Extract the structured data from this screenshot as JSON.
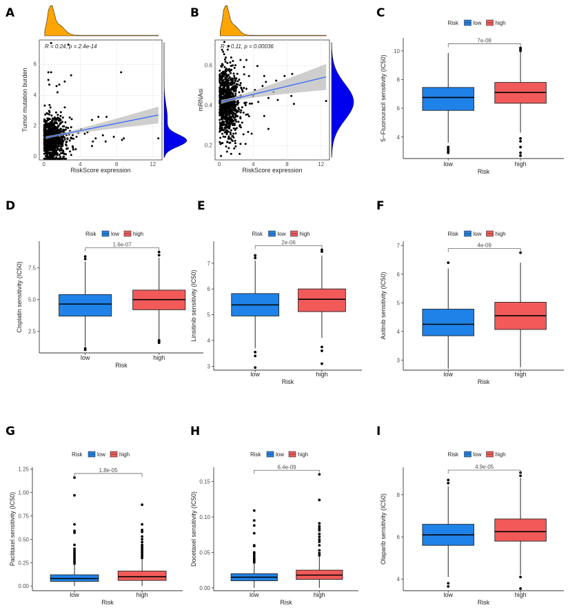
{
  "colors": {
    "low": "#1f82e8",
    "high": "#f25a5a",
    "top_density": "#ffa500",
    "right_density": "#0000ee",
    "fit_line": "#3366ff",
    "ci_band": "#bdbdbd"
  },
  "legend": {
    "title": "Risk",
    "low": "low",
    "high": "high"
  },
  "chart_data": [
    {
      "panel": "A",
      "type": "scatter",
      "xlabel": "RiskScore expression",
      "ylabel": "Tumor mutation burden",
      "xlim": [
        -0.5,
        13
      ],
      "ylim": [
        -0.2,
        7.6
      ],
      "xticks": [
        0,
        4,
        8,
        12
      ],
      "yticks": [
        0,
        2,
        4,
        6
      ],
      "annotation": "R = 0.24, p = 2.4e-14",
      "fit": {
        "x0": 0.2,
        "y0": 1.25,
        "x1": 12.6,
        "y1": 2.72,
        "ci_halfwidth_end": 0.55
      },
      "cluster": {
        "n": 900,
        "x_center": 0.9,
        "x_spread": 0.7,
        "y_center": 1.2,
        "y_spread": 0.7,
        "seed": 7
      },
      "points": [
        [
          0.8,
          7.4
        ],
        [
          2.7,
          7.3
        ],
        [
          0.5,
          5.5
        ],
        [
          0.8,
          5.5
        ],
        [
          3,
          5.3
        ],
        [
          8.5,
          5.5
        ],
        [
          0.5,
          5.0
        ],
        [
          2.3,
          4.9
        ],
        [
          0.6,
          4.7
        ],
        [
          1.7,
          4.7
        ],
        [
          1.4,
          4.6
        ],
        [
          1.5,
          4.2
        ],
        [
          5.3,
          2.4
        ],
        [
          6,
          2.6
        ],
        [
          6.9,
          2.6
        ],
        [
          5.3,
          0.7
        ],
        [
          5.4,
          1.0
        ],
        [
          5.7,
          1.2
        ],
        [
          6.5,
          1.4
        ],
        [
          6.8,
          1.0
        ],
        [
          7.7,
          1.3
        ],
        [
          8.6,
          1.1
        ],
        [
          8.8,
          1.2
        ],
        [
          12.6,
          1.2
        ],
        [
          3.2,
          0.6
        ],
        [
          3.6,
          1.3
        ],
        [
          4.1,
          1.8
        ],
        [
          4.5,
          1.5
        ],
        [
          4.8,
          1.6
        ],
        [
          2.2,
          0.2
        ]
      ]
    },
    {
      "panel": "B",
      "type": "scatter",
      "xlabel": "RiskScore expression",
      "ylabel": "mRNAsi",
      "xlim": [
        -0.5,
        13
      ],
      "ylim": [
        0.13,
        0.73
      ],
      "xticks": [
        0,
        4,
        8,
        12
      ],
      "yticks": [
        0.2,
        0.4,
        0.6
      ],
      "annotation": "R = 0.11, p = 0.00036",
      "fit": {
        "x0": 0.2,
        "y0": 0.42,
        "x1": 12.6,
        "y1": 0.545,
        "ci_halfwidth_end": 0.065
      },
      "cluster": {
        "n": 900,
        "x_center": 0.9,
        "x_spread": 0.7,
        "y_center": 0.42,
        "y_spread": 0.09,
        "seed": 11
      },
      "points": [
        [
          0.6,
          0.72
        ],
        [
          1.1,
          0.7
        ],
        [
          2.5,
          0.63
        ],
        [
          3.2,
          0.63
        ],
        [
          4.5,
          0.6
        ],
        [
          3.5,
          0.55
        ],
        [
          5.3,
          0.55
        ],
        [
          5.5,
          0.52
        ],
        [
          7.7,
          0.55
        ],
        [
          8.6,
          0.56
        ],
        [
          6.4,
          0.47
        ],
        [
          5.1,
          0.5
        ],
        [
          4.2,
          0.48
        ],
        [
          6.9,
          0.43
        ],
        [
          8.5,
          0.45
        ],
        [
          8.8,
          0.41
        ],
        [
          12.6,
          0.425
        ],
        [
          5.3,
          0.35
        ],
        [
          5.8,
          0.285
        ],
        [
          3.4,
          0.27
        ],
        [
          2.4,
          0.16
        ],
        [
          1.4,
          0.16
        ],
        [
          0.2,
          0.15
        ],
        [
          2.5,
          0.21
        ],
        [
          3.1,
          0.21
        ],
        [
          5.8,
          0.44
        ],
        [
          4.6,
          0.42
        ],
        [
          4,
          0.45
        ]
      ]
    },
    {
      "panel": "C",
      "type": "box",
      "xlabel": "Risk",
      "ylabel": "5−Fluorouracil sensitivity (IC50)",
      "categories": [
        "low",
        "high"
      ],
      "p_value": "7e-08",
      "ylim": [
        2.5,
        10.9
      ],
      "yticks": [
        4,
        6,
        8,
        10
      ],
      "groups": [
        {
          "whisker_low": 3.6,
          "q1": 5.85,
          "median": 6.75,
          "q3": 7.45,
          "whisker_high": 9.85,
          "outliers": [
            2.9,
            3.0,
            3.1,
            3.2,
            3.3
          ]
        },
        {
          "whisker_low": 4.3,
          "q1": 6.35,
          "median": 7.1,
          "q3": 7.8,
          "whisker_high": 9.95,
          "outliers": [
            2.7,
            2.9,
            3.3,
            3.7,
            3.9,
            10.0,
            10.1,
            10.2
          ]
        }
      ]
    },
    {
      "panel": "D",
      "type": "box",
      "xlabel": "Risk",
      "ylabel": "Cisplatin sensitivity (IC50)",
      "categories": [
        "low",
        "high"
      ],
      "p_value": "1.6e-07",
      "ylim": [
        0.8,
        9.6
      ],
      "yticks": [
        2.5,
        5.0,
        7.5
      ],
      "groups": [
        {
          "whisker_low": 1.3,
          "q1": 3.7,
          "median": 4.65,
          "q3": 5.4,
          "whisker_high": 8.0,
          "outliers": [
            1.05,
            1.15,
            8.2,
            8.4
          ]
        },
        {
          "whisker_low": 1.9,
          "q1": 4.2,
          "median": 5.0,
          "q3": 5.75,
          "whisker_high": 8.3,
          "outliers": [
            1.6,
            1.7,
            1.8,
            8.5,
            8.75
          ]
        }
      ]
    },
    {
      "panel": "E",
      "type": "box",
      "xlabel": "Risk",
      "ylabel": "Linsitinib sensitivity (IC50)",
      "categories": [
        "low",
        "high"
      ],
      "p_value": "2e-06",
      "ylim": [
        2.85,
        7.85
      ],
      "yticks": [
        3,
        4,
        5,
        6,
        7
      ],
      "groups": [
        {
          "whisker_low": 3.7,
          "q1": 4.95,
          "median": 5.38,
          "q3": 5.82,
          "whisker_high": 7.1,
          "outliers": [
            2.95,
            3.4,
            3.55,
            7.2,
            7.3
          ]
        },
        {
          "whisker_low": 4.1,
          "q1": 5.12,
          "median": 5.6,
          "q3": 6.0,
          "whisker_high": 7.3,
          "outliers": [
            3.1,
            3.6,
            3.75,
            7.45,
            7.52
          ]
        }
      ]
    },
    {
      "panel": "F",
      "type": "box",
      "xlabel": "Risk",
      "ylabel": "Axitinib sensitivity (IC50)",
      "categories": [
        "low",
        "high"
      ],
      "p_value": "4e-09",
      "ylim": [
        2.65,
        7.15
      ],
      "yticks": [
        3,
        4,
        5,
        6,
        7
      ],
      "groups": [
        {
          "whisker_low": 2.7,
          "q1": 3.85,
          "median": 4.25,
          "q3": 4.78,
          "whisker_high": 6.2,
          "outliers": [
            6.4
          ]
        },
        {
          "whisker_low": 2.75,
          "q1": 4.07,
          "median": 4.55,
          "q3": 5.02,
          "whisker_high": 6.4,
          "outliers": [
            6.75
          ]
        }
      ]
    },
    {
      "panel": "G",
      "type": "box",
      "xlabel": "Risk",
      "ylabel": "Paclitaxel sensitivity (IC50)",
      "categories": [
        "low",
        "high"
      ],
      "p_value": "1.8e-05",
      "ylim": [
        -0.05,
        1.27
      ],
      "yticks": [
        0.0,
        0.25,
        0.5,
        0.75,
        1.0,
        1.25
      ],
      "tick_decimals": 2,
      "groups": [
        {
          "whisker_low": 0.0,
          "q1": 0.05,
          "median": 0.08,
          "q3": 0.12,
          "whisker_high": 0.23,
          "outliers": [
            0.24,
            0.26,
            0.28,
            0.3,
            0.32,
            0.34,
            0.36,
            0.38,
            0.4,
            0.44,
            0.57,
            0.59,
            0.66,
            0.97,
            1.16
          ]
        },
        {
          "whisker_low": 0.0,
          "q1": 0.06,
          "median": 0.1,
          "q3": 0.16,
          "whisker_high": 0.29,
          "outliers": [
            0.3,
            0.32,
            0.34,
            0.36,
            0.38,
            0.4,
            0.42,
            0.44,
            0.47,
            0.5,
            0.53,
            0.58,
            0.6,
            0.66,
            0.87
          ]
        }
      ]
    },
    {
      "panel": "H",
      "type": "box",
      "xlabel": "Risk",
      "ylabel": "Docetaxel sensitivity (IC50)",
      "categories": [
        "low",
        "high"
      ],
      "p_value": "6.4e-09",
      "ylim": [
        -0.004,
        0.17
      ],
      "yticks": [
        0.0,
        0.05,
        0.1,
        0.15
      ],
      "tick_decimals": 2,
      "groups": [
        {
          "whisker_low": 0.0,
          "q1": 0.01,
          "median": 0.015,
          "q3": 0.02,
          "whisker_high": 0.035,
          "outliers": [
            0.036,
            0.038,
            0.04,
            0.042,
            0.045,
            0.048,
            0.05,
            0.059,
            0.06,
            0.077,
            0.088,
            0.095,
            0.109
          ]
        },
        {
          "whisker_low": 0.0,
          "q1": 0.012,
          "median": 0.018,
          "q3": 0.025,
          "whisker_high": 0.045,
          "outliers": [
            0.046,
            0.049,
            0.053,
            0.06,
            0.065,
            0.068,
            0.072,
            0.076,
            0.081,
            0.084,
            0.087,
            0.091,
            0.124,
            0.16
          ]
        }
      ]
    },
    {
      "panel": "I",
      "type": "box",
      "xlabel": "Risk",
      "ylabel": "Olaparib sensitivity (IC50)",
      "categories": [
        "low",
        "high"
      ],
      "p_value": "4.9e-05",
      "ylim": [
        3.45,
        9.3
      ],
      "yticks": [
        4,
        6,
        8
      ],
      "groups": [
        {
          "whisker_low": 4.1,
          "q1": 5.6,
          "median": 6.1,
          "q3": 6.6,
          "whisker_high": 8.4,
          "outliers": [
            3.65,
            3.8,
            8.55,
            8.7
          ]
        },
        {
          "whisker_low": 4.2,
          "q1": 5.8,
          "median": 6.25,
          "q3": 6.85,
          "whisker_high": 8.8,
          "outliers": [
            3.55,
            4.1,
            8.9,
            9.05
          ]
        }
      ]
    }
  ]
}
